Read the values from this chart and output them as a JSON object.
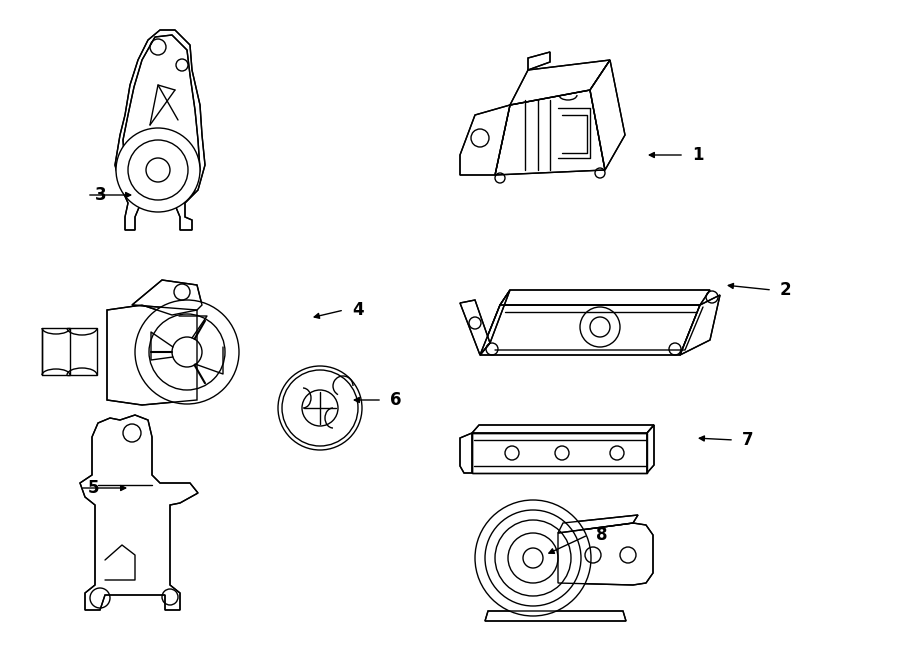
{
  "bg_color": "#ffffff",
  "line_color": "#000000",
  "lw": 1.0,
  "fig_width": 9.0,
  "fig_height": 6.61,
  "dpi": 100
}
